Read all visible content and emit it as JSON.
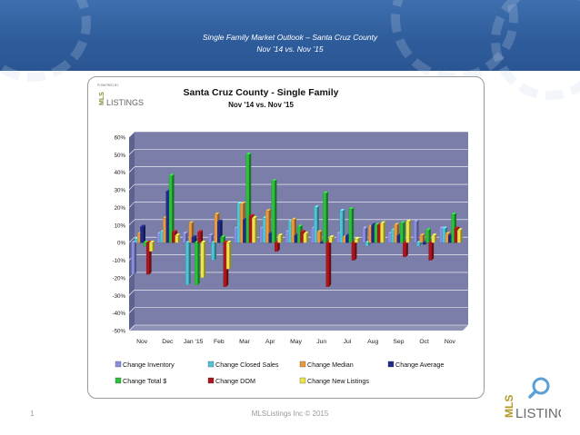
{
  "slide": {
    "title": "Single Family Market Outlook – Santa Cruz County",
    "subtitle": "Nov ’14 vs. Nov ’15",
    "page_number": "1",
    "copyright": "MLSListings Inc © 2015"
  },
  "logo": {
    "powered_by": "POWERED BY",
    "mls": "MLS",
    "listings": "LISTINGS"
  },
  "colors": {
    "header_band": "#2f5d9c",
    "plot_wall": "#7a7ea8",
    "series": [
      "#8a8ee0",
      "#4fc4d6",
      "#e89a3c",
      "#1f2a8a",
      "#2ac23a",
      "#b0141a",
      "#ece44a"
    ]
  },
  "chart_data": {
    "type": "bar",
    "title": "Santa Cruz County - Single Family",
    "subtitle": "Nov '14 vs. Nov '15",
    "xlabel": "",
    "ylabel": "",
    "ylim": [
      -50,
      60
    ],
    "yticks": [
      60,
      50,
      40,
      30,
      20,
      10,
      0,
      -10,
      -20,
      -30,
      -40,
      -50
    ],
    "ytick_labels": [
      "60%",
      "50%",
      "40%",
      "30%",
      "20%",
      "10%",
      "0%",
      "-10%",
      "-20%",
      "-30%",
      "-40%",
      "-50%"
    ],
    "grid": true,
    "legend_position": "bottom",
    "categories": [
      "Nov",
      "Dec",
      "Jan '15",
      "Feb",
      "Mar",
      "Apr",
      "May",
      "Jun",
      "Jul",
      "Aug",
      "Sep",
      "Oct",
      "Nov"
    ],
    "series": [
      {
        "name": "Change Inventory",
        "values": [
          -18,
          5,
          5,
          4,
          8,
          8,
          6,
          8,
          5,
          8,
          5,
          12,
          8
        ]
      },
      {
        "name": "Change Closed Sales",
        "values": [
          2,
          6,
          -24,
          -10,
          22,
          14,
          12,
          20,
          18,
          -2,
          7,
          -2,
          8
        ]
      },
      {
        "name": "Change Median",
        "values": [
          5,
          14,
          11,
          16,
          22,
          18,
          13,
          6,
          3,
          9,
          10,
          4,
          5
        ]
      },
      {
        "name": "Change Average",
        "values": [
          9,
          29,
          3,
          12,
          13,
          5,
          4,
          0,
          4,
          10,
          4,
          -1,
          4
        ]
      },
      {
        "name": "Change Total $",
        "values": [
          -2,
          38,
          -24,
          3,
          50,
          35,
          9,
          28,
          19,
          10,
          11,
          7,
          16
        ]
      },
      {
        "name": "Change DOM",
        "values": [
          -18,
          6,
          6,
          -25,
          15,
          -5,
          6,
          -25,
          -10,
          10,
          -8,
          -10,
          8
        ]
      },
      {
        "name": "Change New Listings",
        "values": [
          -5,
          4,
          -20,
          -15,
          14,
          4,
          5,
          3,
          2,
          11,
          12,
          4,
          7
        ]
      }
    ]
  }
}
